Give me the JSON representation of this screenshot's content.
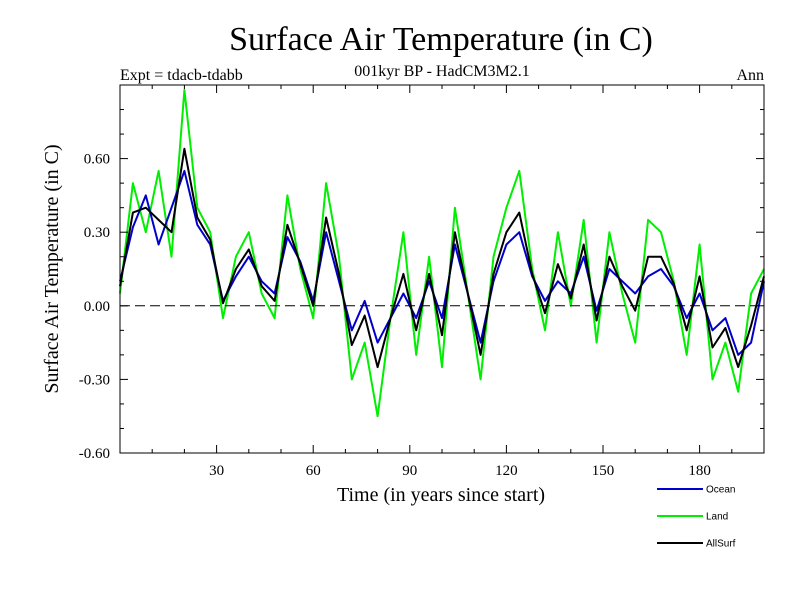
{
  "chart_data": {
    "type": "line",
    "title": "Surface Air Temperature (in C)",
    "subtitle": "001kyr BP - HadCM3M2.1",
    "left_label": "Expt = tdacb-tdabb",
    "right_label": "Ann",
    "xlabel": "Time (in years since start)",
    "ylabel": "Surface Air Temperature (in C)",
    "xlim": [
      0,
      200
    ],
    "ylim": [
      -0.6,
      0.9
    ],
    "x_ticks": [
      30,
      60,
      90,
      120,
      150,
      180
    ],
    "x_tick_labels": [
      "30",
      "60",
      "90",
      "120",
      "150",
      "180"
    ],
    "y_ticks": [
      -0.6,
      -0.3,
      0.0,
      0.3,
      0.6
    ],
    "y_tick_labels": [
      "-0.60",
      "-0.30",
      "0.00",
      "0.30",
      "0.60"
    ],
    "reference_line": 0.0,
    "x": [
      0,
      4,
      8,
      12,
      16,
      20,
      24,
      28,
      32,
      36,
      40,
      44,
      48,
      52,
      56,
      60,
      64,
      68,
      72,
      76,
      80,
      84,
      88,
      92,
      96,
      100,
      104,
      108,
      112,
      116,
      120,
      124,
      128,
      132,
      136,
      140,
      144,
      148,
      152,
      156,
      160,
      164,
      168,
      172,
      176,
      180,
      184,
      188,
      192,
      196,
      200
    ],
    "series": [
      {
        "name": "Ocean",
        "color": "#0000cc",
        "values": [
          0.1,
          0.32,
          0.45,
          0.25,
          0.4,
          0.55,
          0.33,
          0.25,
          0.02,
          0.12,
          0.2,
          0.1,
          0.05,
          0.28,
          0.18,
          0.02,
          0.3,
          0.1,
          -0.1,
          0.02,
          -0.15,
          -0.05,
          0.05,
          -0.05,
          0.1,
          -0.05,
          0.25,
          0.05,
          -0.15,
          0.1,
          0.25,
          0.3,
          0.12,
          0.02,
          0.1,
          0.05,
          0.2,
          -0.02,
          0.15,
          0.1,
          0.05,
          0.12,
          0.15,
          0.08,
          -0.05,
          0.05,
          -0.1,
          -0.05,
          -0.2,
          -0.15,
          0.1
        ]
      },
      {
        "name": "Land",
        "color": "#00ee00",
        "values": [
          0.05,
          0.5,
          0.3,
          0.55,
          0.2,
          0.88,
          0.4,
          0.3,
          -0.05,
          0.2,
          0.3,
          0.05,
          -0.05,
          0.45,
          0.15,
          -0.05,
          0.5,
          0.2,
          -0.3,
          -0.15,
          -0.45,
          -0.05,
          0.3,
          -0.2,
          0.2,
          -0.25,
          0.4,
          0.05,
          -0.3,
          0.2,
          0.4,
          0.55,
          0.15,
          -0.1,
          0.3,
          0.0,
          0.35,
          -0.15,
          0.3,
          0.05,
          -0.15,
          0.35,
          0.3,
          0.1,
          -0.2,
          0.25,
          -0.3,
          -0.15,
          -0.35,
          0.05,
          0.15
        ]
      },
      {
        "name": "AllSurf",
        "color": "#000000",
        "values": [
          0.08,
          0.38,
          0.4,
          0.35,
          0.3,
          0.64,
          0.36,
          0.27,
          0.01,
          0.15,
          0.23,
          0.08,
          0.02,
          0.33,
          0.17,
          0.0,
          0.36,
          0.13,
          -0.16,
          -0.04,
          -0.25,
          -0.05,
          0.13,
          -0.1,
          0.13,
          -0.12,
          0.3,
          0.05,
          -0.2,
          0.13,
          0.3,
          0.38,
          0.13,
          -0.03,
          0.17,
          0.03,
          0.25,
          -0.06,
          0.2,
          0.08,
          -0.02,
          0.2,
          0.2,
          0.09,
          -0.1,
          0.12,
          -0.17,
          -0.09,
          -0.25,
          -0.08,
          0.12
        ]
      }
    ],
    "legend": [
      "Ocean",
      "Land",
      "AllSurf"
    ]
  }
}
